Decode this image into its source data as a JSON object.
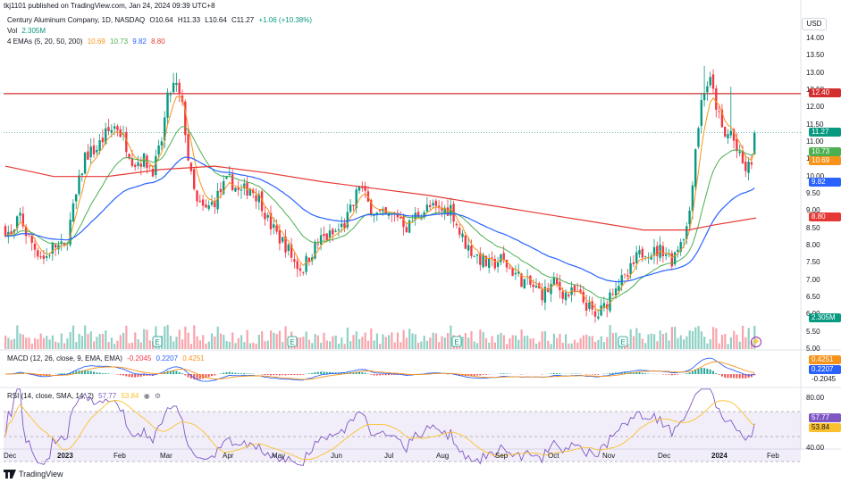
{
  "header": {
    "published": "tkj1101 published on TradingView.com, Jan 24, 2024 09:39 UTC+8"
  },
  "legend": {
    "symbol": "Century Aluminum Company, 1D, NASDAQ",
    "o": "O10.64",
    "h": "H11.33",
    "l": "L10.64",
    "c": "C11.27",
    "change": "+1.06 (+10.38%)",
    "vol_label": "Vol",
    "vol_value": "2.305M",
    "ema_label": "4 EMAs (5, 20, 50, 200)",
    "ema5": "10.69",
    "ema20": "10.73",
    "ema50": "9.82",
    "ema200": "8.80"
  },
  "macd": {
    "label": "MACD (12, 26, close, 9, EMA, EMA)",
    "hist": "-0.2045",
    "macd": "0.2207",
    "signal": "0.4251"
  },
  "rsi": {
    "label": "RSI (14, close, SMA, 14, 2)",
    "rsi": "57.77",
    "sma": "53.84"
  },
  "currency": "USD",
  "price_axis": [
    "14.00",
    "13.50",
    "13.00",
    "12.50",
    "12.00",
    "11.50",
    "11.00",
    "10.50",
    "10.00",
    "9.50",
    "9.00",
    "8.50",
    "8.00",
    "7.50",
    "7.00",
    "6.50",
    "6.00",
    "5.50",
    "5.00"
  ],
  "rsi_axis": [
    "80.00",
    "40.00"
  ],
  "badges": {
    "hline": "12.40",
    "last": "11.27",
    "ema20": "10.73",
    "ema5": "10.69",
    "ema50": "9.82",
    "ema200": "8.80",
    "volume": "2.305M",
    "macd_signal": "0.4251",
    "macd_line": "0.2207",
    "macd_hist": "-0.2045",
    "rsi": "57.77",
    "rsi_sma": "53.84"
  },
  "x_axis": [
    "Dec",
    "2023",
    "Feb",
    "Mar",
    "Apr",
    "May",
    "Jun",
    "Jul",
    "Aug",
    "Sep",
    "Oct",
    "Nov",
    "Dec",
    "2024",
    "Feb"
  ],
  "earnings_marker": "E",
  "brand": "TradingView",
  "colors": {
    "up": "#089981",
    "down": "#f23645",
    "ema5": "#f7931a",
    "ema20": "#4caf50",
    "ema50": "#2962ff",
    "ema200": "#e53935",
    "hline": "#d32f2f",
    "rsi": "#7e57c2",
    "rsi_sma": "#fbc02d"
  },
  "chart_data": {
    "type": "candlestick",
    "title": "Century Aluminum Company, 1D, NASDAQ",
    "ylim": [
      5.0,
      14.0
    ],
    "horizontal_line": 12.4,
    "last_close": 11.27,
    "series": [
      {
        "name": "EMA 5",
        "last": 10.69
      },
      {
        "name": "EMA 20",
        "last": 10.73
      },
      {
        "name": "EMA 50",
        "last": 9.82
      },
      {
        "name": "EMA 200",
        "last": 8.8
      }
    ],
    "monthly_closes": {
      "x": [
        "Dec",
        "2023",
        "Feb",
        "Mar",
        "Apr",
        "May",
        "Jun",
        "Jul",
        "Aug",
        "Sep",
        "Oct",
        "Nov",
        "Dec",
        "2024",
        "Feb"
      ],
      "values": [
        8.6,
        8.4,
        11.6,
        12.8,
        9.6,
        7.4,
        9.6,
        8.9,
        9.1,
        7.4,
        6.7,
        6.4,
        7.9,
        12.9,
        11.27
      ]
    }
  }
}
